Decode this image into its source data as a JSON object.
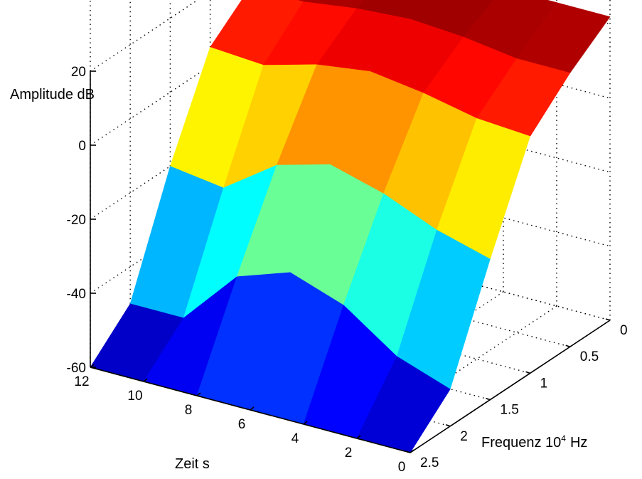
{
  "chart_data": {
    "type": "surface",
    "title": "",
    "zlabel": "Amplitude dB",
    "xlabel": "Zeit s",
    "ylabel": "Frequenz 10⁴ Hz",
    "ylabel_parts": {
      "text": "Frequenz 10",
      "exponent": "4",
      "unit": "Hz"
    },
    "zlim": [
      -60,
      20
    ],
    "xlim": [
      0,
      12
    ],
    "ylim": [
      0,
      2.5
    ],
    "z_ticks": [
      "20",
      "0",
      "-20",
      "-40",
      "-60"
    ],
    "x_ticks": [
      "12",
      "10",
      "8",
      "6",
      "4",
      "2",
      "0"
    ],
    "y_ticks": [
      "0",
      "0.5",
      "1",
      "1.5",
      "2",
      "2.5"
    ],
    "grid": true,
    "colormap": "jet",
    "colors": [
      "#00008f",
      "#0000ff",
      "#00ffff",
      "#ffff00",
      "#ff0000",
      "#800000"
    ],
    "series": [
      {
        "name": "",
        "time_s": 12,
        "frequency_1e4hz": [
          0,
          0.5,
          1,
          1.5,
          2,
          2.5
        ],
        "amplitude_db": [
          22,
          14,
          5,
          -20,
          -50,
          -60
        ]
      },
      {
        "name": "",
        "time_s": 10,
        "frequency_1e4hz": [
          0,
          0.5,
          1,
          1.5,
          2,
          2.5
        ],
        "amplitude_db": [
          22,
          14,
          4,
          -22,
          -50,
          -60
        ]
      },
      {
        "name": "",
        "time_s": 8,
        "frequency_1e4hz": [
          0,
          0.5,
          1,
          1.5,
          2,
          2.5
        ],
        "amplitude_db": [
          22,
          16,
          8,
          -12,
          -35,
          -60
        ]
      },
      {
        "name": "",
        "time_s": 6,
        "frequency_1e4hz": [
          0,
          0.5,
          1,
          1.5,
          2,
          2.5
        ],
        "amplitude_db": [
          22,
          17,
          10,
          -8,
          -30,
          -60
        ]
      },
      {
        "name": "",
        "time_s": 4,
        "frequency_1e4hz": [
          0,
          0.5,
          1,
          1.5,
          2,
          2.5
        ],
        "amplitude_db": [
          22,
          16,
          8,
          -12,
          -35,
          -60
        ]
      },
      {
        "name": "",
        "time_s": 2,
        "frequency_1e4hz": [
          0,
          0.5,
          1,
          1.5,
          2,
          2.5
        ],
        "amplitude_db": [
          22,
          14,
          5,
          -18,
          -45,
          -60
        ]
      },
      {
        "name": "",
        "time_s": 0,
        "frequency_1e4hz": [
          0,
          0.5,
          1,
          1.5,
          2,
          2.5
        ],
        "amplitude_db": [
          22,
          14,
          4,
          -22,
          -50,
          -60
        ]
      }
    ]
  }
}
